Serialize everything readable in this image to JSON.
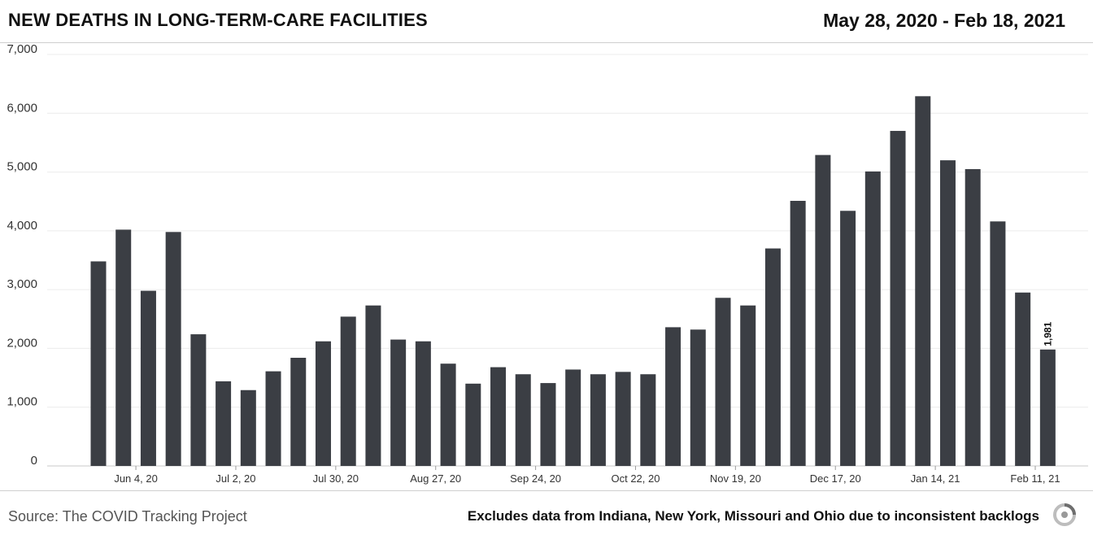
{
  "header": {
    "title": "NEW DEATHS IN LONG-TERM-CARE FACILITIES",
    "date_range": "May 28, 2020 - Feb 18, 2021"
  },
  "footer": {
    "source": "Source: The COVID Tracking Project",
    "note": "Excludes data from Indiana, New York, Missouri and Ohio due to inconsistent backlogs",
    "logo_icon": "covid-tracking-project-logo-icon"
  },
  "chart_data": {
    "type": "bar",
    "title": "NEW DEATHS IN LONG-TERM-CARE FACILITIES",
    "xlabel": "",
    "ylabel": "",
    "ylim": [
      0,
      7000
    ],
    "yticks": [
      0,
      1000,
      2000,
      3000,
      4000,
      5000,
      6000,
      7000
    ],
    "ytick_labels": [
      "0",
      "1,000",
      "2,000",
      "3,000",
      "4,000",
      "5,000",
      "6,000",
      "7,000"
    ],
    "xtick_labels": [
      {
        "index": 1,
        "label": "Jun 4, 20"
      },
      {
        "index": 5,
        "label": "Jul 2, 20"
      },
      {
        "index": 9,
        "label": "Jul 30, 20"
      },
      {
        "index": 13,
        "label": "Aug 27, 20"
      },
      {
        "index": 17,
        "label": "Sep 24, 20"
      },
      {
        "index": 21,
        "label": "Oct 22, 20"
      },
      {
        "index": 25,
        "label": "Nov 19, 20"
      },
      {
        "index": 29,
        "label": "Dec 17, 20"
      },
      {
        "index": 33,
        "label": "Jan 14, 21"
      },
      {
        "index": 37,
        "label": "Feb 11, 21"
      }
    ],
    "values": [
      3480,
      4020,
      2980,
      3980,
      2240,
      1440,
      1290,
      1610,
      1840,
      2120,
      2540,
      2730,
      2150,
      2120,
      1740,
      1400,
      1680,
      1560,
      1410,
      1640,
      1560,
      1600,
      1560,
      2360,
      2320,
      2860,
      2730,
      3700,
      4510,
      5290,
      4340,
      5010,
      5700,
      6290,
      5200,
      5050,
      4160,
      2950,
      1981
    ],
    "data_labels": [
      {
        "index": 38,
        "label": "1,981"
      }
    ],
    "bar_color": "#3b3e44",
    "grid": true
  }
}
